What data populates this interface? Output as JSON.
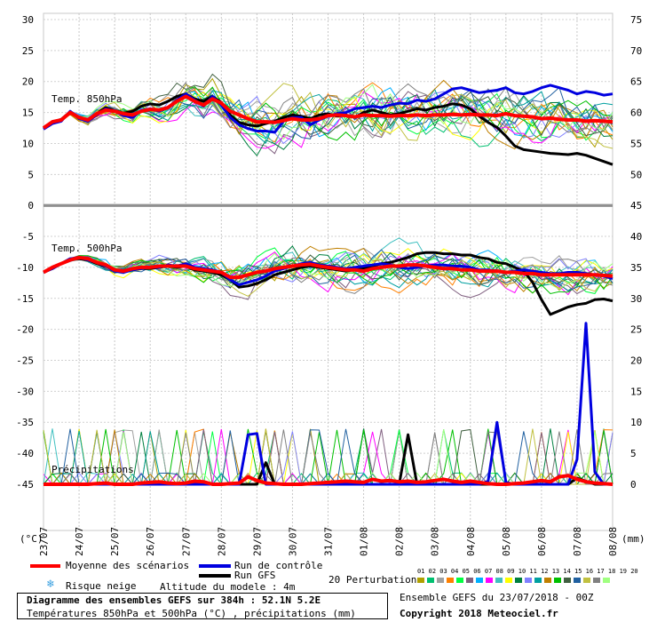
{
  "titles": {
    "t850": "Temp. 850hPa",
    "t500": "Temp. 500hPa",
    "precip": "Précipitations"
  },
  "units": {
    "left": "(°C)",
    "right": "(mm)"
  },
  "left_ticks": [
    30,
    25,
    20,
    15,
    10,
    5,
    0,
    -5,
    -10,
    -15,
    -20,
    -25,
    -30,
    -35,
    -40,
    -45
  ],
  "right_ticks_top": [
    75,
    70,
    65,
    60,
    55,
    50,
    45
  ],
  "right_ticks_mid": [
    40,
    35,
    30,
    25,
    20,
    15,
    10,
    5,
    0
  ],
  "dates": [
    "23/07",
    "24/07",
    "25/07",
    "26/07",
    "27/07",
    "28/07",
    "29/07",
    "30/07",
    "31/07",
    "01/08",
    "02/08",
    "03/08",
    "04/08",
    "05/08",
    "06/08",
    "07/08",
    "08/08"
  ],
  "legend": {
    "mean": "Moyenne des scénarios",
    "control": "Run de contrôle",
    "gfs": "Run GFS",
    "snow": "Risque neige",
    "altitude": "Altitude du modele : 4m",
    "perturbations": "20 Perturbations",
    "pert_numbers": "01 02 03 04 05 06 07 08 09 10 11 12 13 14 15 16 17 18 19 20",
    "box_title": "Diagramme des ensembles GEFS sur 384h : 52.1N 5.2E",
    "box_subtitle": "Températures 850hPa et 500hPa (°C) , précipitations (mm)",
    "run_info": "Ensemble GEFS du 23/07/2018 - 00Z",
    "copyright": "Copyright 2018 Meteociel.fr"
  },
  "colors": {
    "mean": "#ff0000",
    "control": "#0000e0",
    "gfs": "#000000",
    "pert": [
      "#b0a000",
      "#00c070",
      "#a0a0a0",
      "#ff8000",
      "#00ff40",
      "#806080",
      "#00b0ff",
      "#ff00ff",
      "#40c0c0",
      "#ffff00",
      "#008040",
      "#8080ff",
      "#00a0a0",
      "#c08000",
      "#00c000",
      "#406040",
      "#2060a0",
      "#c0c040",
      "#808080",
      "#a0ff80"
    ]
  },
  "chart_data": [
    {
      "type": "line",
      "title": "Temp. 850hPa",
      "ylabel": "(°C)",
      "ylim": [
        0,
        30
      ],
      "x_index": [
        0,
        1,
        2,
        3,
        4,
        5,
        6,
        7,
        8,
        9,
        10,
        11,
        12,
        13,
        14,
        15,
        16,
        17,
        18,
        19,
        20,
        21,
        22,
        23,
        24,
        25,
        26,
        27,
        28,
        29,
        30,
        31,
        32,
        33,
        34,
        35,
        36,
        37,
        38,
        39,
        40,
        41,
        42,
        43,
        44,
        45,
        46,
        47,
        48,
        49,
        50,
        51,
        52,
        53,
        54,
        55,
        56,
        57,
        58,
        59,
        60,
        61,
        62,
        63,
        64
      ],
      "series": [
        {
          "name": "Moyenne des scénarios",
          "values": [
            12.5,
            13.5,
            13.8,
            15,
            14.2,
            13.8,
            14.8,
            15.4,
            15.2,
            14.8,
            14.6,
            15.2,
            15.5,
            15.4,
            15.8,
            16.8,
            17.6,
            16.8,
            16.2,
            17.2,
            16.5,
            15.2,
            14.6,
            14,
            13.5,
            13.5,
            13.4,
            13.7,
            14,
            13.8,
            13.8,
            14,
            14.5,
            14.6,
            14.5,
            14.3,
            14.6,
            14.5,
            14.5,
            14.4,
            14.5,
            14.5,
            14.6,
            14.5,
            14.6,
            14.6,
            14.7,
            14.6,
            14.7,
            14.6,
            14.6,
            14.5,
            14.8,
            14.5,
            14.4,
            14.3,
            14,
            14.1,
            13.9,
            13.8,
            13.8,
            13.6,
            13.7,
            13.6,
            13.5
          ]
        },
        {
          "name": "Run de contrôle",
          "values": [
            12.3,
            13.2,
            13.6,
            15.2,
            14,
            13.6,
            14.6,
            15.6,
            15.2,
            14.5,
            14.2,
            15.3,
            15.6,
            15.2,
            15.8,
            17,
            18,
            17,
            16,
            17.6,
            16.2,
            14.2,
            13,
            12.4,
            12,
            12,
            11.8,
            13.6,
            14.2,
            14.2,
            13,
            13.8,
            14.4,
            14.8,
            15,
            15.6,
            15.8,
            16,
            15.8,
            16.2,
            16.5,
            16.4,
            17,
            16.8,
            17.2,
            18,
            18.8,
            19,
            18.6,
            18.2,
            18.4,
            18.6,
            19,
            18.2,
            18,
            18.4,
            19,
            19.4,
            19,
            18.6,
            18,
            18.4,
            18.2,
            17.8,
            18
          ]
        },
        {
          "name": "Run GFS",
          "values": [
            12.4,
            13.4,
            13.9,
            15.1,
            14.2,
            13.7,
            14.8,
            15.8,
            15.3,
            14.9,
            15.2,
            16,
            16.4,
            16.2,
            16.8,
            17.6,
            18,
            17.2,
            16.8,
            17.6,
            16.6,
            14.6,
            13.4,
            13,
            12.8,
            13.2,
            13.6,
            14.2,
            14.6,
            14.4,
            14,
            14.6,
            14.8,
            14.4,
            14.6,
            14.2,
            15,
            15.4,
            15,
            14.6,
            14.8,
            15.2,
            15.6,
            15.4,
            15.8,
            16,
            16.4,
            16.2,
            15.6,
            14.4,
            13.4,
            12.6,
            11.2,
            9.6,
            9,
            8.8,
            8.6,
            8.4,
            8.3,
            8.2,
            8.4,
            8.1,
            7.6,
            7.1,
            6.6
          ]
        }
      ]
    },
    {
      "type": "line",
      "title": "Temp. 500hPa",
      "ylabel": "(°C)",
      "ylim": [
        -20,
        0
      ],
      "series": [
        {
          "name": "Moyenne des scénarios",
          "values": [
            -10.8,
            -10,
            -9.4,
            -8.8,
            -8.4,
            -8.6,
            -9.2,
            -9.6,
            -10.4,
            -10.6,
            -10.2,
            -10,
            -10,
            -9.8,
            -9.8,
            -9.8,
            -9.8,
            -10.2,
            -10.4,
            -10.6,
            -10.8,
            -11.6,
            -11.6,
            -11.2,
            -10.8,
            -10.6,
            -10.2,
            -10,
            -9.8,
            -9.6,
            -9.5,
            -9.8,
            -10,
            -10.2,
            -10.4,
            -10.4,
            -10.6,
            -10.2,
            -10,
            -9.8,
            -9.8,
            -9.6,
            -9.6,
            -9.8,
            -10,
            -10.2,
            -10.2,
            -10.4,
            -10.4,
            -10.6,
            -10.6,
            -10.6,
            -10.8,
            -10.8,
            -11,
            -11,
            -11.2,
            -11.2,
            -11.2,
            -11.2,
            -11.2,
            -11.2,
            -11.2,
            -11.3,
            -11.4
          ]
        },
        {
          "name": "Run de contrôle",
          "values": [
            -10.8,
            -10.2,
            -9.4,
            -8.6,
            -8.4,
            -8.8,
            -9.2,
            -9.8,
            -10.6,
            -10.8,
            -10.4,
            -10.2,
            -10,
            -10,
            -9.6,
            -9.8,
            -9.4,
            -10,
            -10.2,
            -10.4,
            -10.8,
            -12,
            -12.8,
            -12.4,
            -12,
            -11.4,
            -10.6,
            -10.2,
            -9.8,
            -9.4,
            -9.2,
            -9.6,
            -9.8,
            -10,
            -10.2,
            -10,
            -9.8,
            -9.6,
            -9.4,
            -9.6,
            -10,
            -10.2,
            -10,
            -9.8,
            -9.6,
            -9.6,
            -9.8,
            -9.8,
            -10,
            -10.4,
            -10.4,
            -10.6,
            -10.8,
            -10.6,
            -10.4,
            -10.6,
            -10.8,
            -11,
            -11,
            -10.8,
            -10.8,
            -11,
            -11.2,
            -11.4,
            -11.8
          ]
        },
        {
          "name": "Run GFS",
          "values": [
            -10.8,
            -10.2,
            -9.4,
            -8.6,
            -8.6,
            -8.8,
            -9.4,
            -9.8,
            -10.4,
            -10.6,
            -10.4,
            -10.2,
            -10.2,
            -10,
            -9.8,
            -10,
            -9.8,
            -10.4,
            -10.6,
            -10.8,
            -11.2,
            -12,
            -13.2,
            -13,
            -12.6,
            -12,
            -11.2,
            -10.8,
            -10.4,
            -10,
            -9.8,
            -10,
            -10.2,
            -10.4,
            -10.6,
            -10.4,
            -10.2,
            -9.8,
            -9.4,
            -9.2,
            -8.8,
            -8.4,
            -7.8,
            -7.6,
            -7.6,
            -7.8,
            -7.8,
            -8,
            -8,
            -8.4,
            -8.6,
            -9.2,
            -9.4,
            -10,
            -10.6,
            -12.4,
            -15.2,
            -17.6,
            -17,
            -16.4,
            -16,
            -15.8,
            -15.2,
            -15.1,
            -15.4
          ]
        }
      ]
    },
    {
      "type": "line",
      "title": "Précipitations",
      "ylabel": "(mm)",
      "ylim": [
        0,
        40
      ],
      "series": [
        {
          "name": "Moyenne des scénarios",
          "values": [
            0,
            0,
            0,
            0,
            0,
            0,
            0.1,
            0.2,
            0,
            0,
            0,
            0.2,
            0.3,
            0.4,
            0.2,
            0.1,
            0.2,
            0.5,
            0.4,
            0,
            0,
            0.1,
            0.2,
            1.2,
            0.6,
            0.2,
            0.1,
            0,
            0,
            0,
            0.1,
            0.2,
            0.3,
            0.4,
            0.5,
            0.4,
            0.3,
            0.8,
            0.5,
            0.6,
            0.4,
            0.5,
            0.3,
            0.4,
            0.6,
            0.8,
            0.5,
            0.3,
            0.5,
            0.3,
            0.1,
            0,
            0,
            0.1,
            0.2,
            0.4,
            0.6,
            0.4,
            1.2,
            1.4,
            0.8,
            0.4,
            0.2,
            0.1,
            0
          ]
        },
        {
          "name": "Run de contrôle",
          "values": [
            0,
            0,
            0,
            0,
            0,
            0,
            0,
            0,
            0,
            0,
            0,
            0,
            0,
            0,
            0,
            0,
            0,
            0,
            0,
            0,
            0,
            0,
            0,
            8,
            8.2,
            0,
            0,
            0,
            0,
            0,
            0,
            0,
            0,
            0,
            0,
            0,
            0,
            0,
            0,
            0,
            0,
            0,
            0,
            0,
            0,
            0,
            0,
            0,
            0,
            0,
            0.5,
            10,
            0.3,
            0,
            0,
            0,
            0,
            0,
            0,
            0,
            4,
            26,
            2,
            0,
            0
          ]
        },
        {
          "name": "Run GFS",
          "values": [
            0,
            0,
            0,
            0,
            0,
            0,
            0,
            0,
            0,
            0,
            0,
            0,
            0,
            0,
            0,
            0,
            0,
            0,
            0,
            0,
            0,
            0,
            0,
            0,
            0,
            3.5,
            0,
            0,
            0,
            0,
            0,
            0,
            0,
            0,
            0,
            0,
            0,
            0,
            0,
            0,
            0,
            8,
            0,
            0,
            0,
            0,
            0,
            0,
            0,
            0,
            0,
            0,
            0,
            0,
            0,
            0,
            0,
            0,
            0,
            0,
            1,
            0.5,
            0,
            0,
            0
          ]
        }
      ]
    }
  ]
}
